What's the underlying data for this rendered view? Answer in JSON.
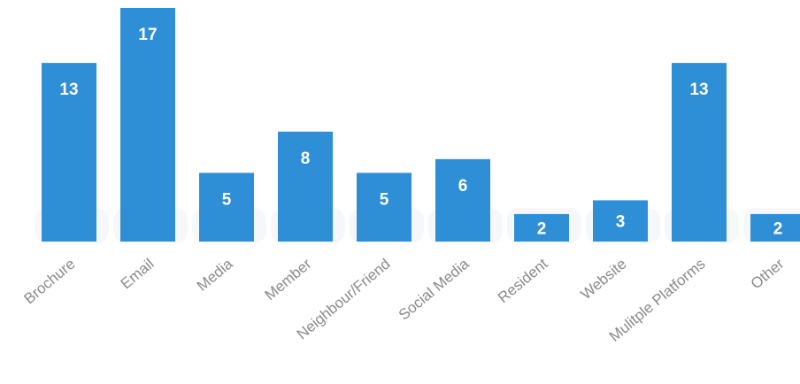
{
  "chart_data": {
    "type": "bar",
    "categories": [
      "Brochure",
      "Email",
      "Media",
      "Member",
      "Neighbour/Friend",
      "Social Media",
      "Resident",
      "Website",
      "Mulitple Platforms",
      "Other"
    ],
    "values": [
      13,
      17,
      5,
      8,
      5,
      6,
      2,
      3,
      13,
      2
    ],
    "title": "",
    "xlabel": "",
    "ylabel": "",
    "ylim": [
      0,
      17
    ],
    "grid": false,
    "legend": "none",
    "data_labels": true,
    "bar_color": "#2f8fd6",
    "label_color": "#ffffff",
    "tick_label_color": "#8a8a8a"
  }
}
